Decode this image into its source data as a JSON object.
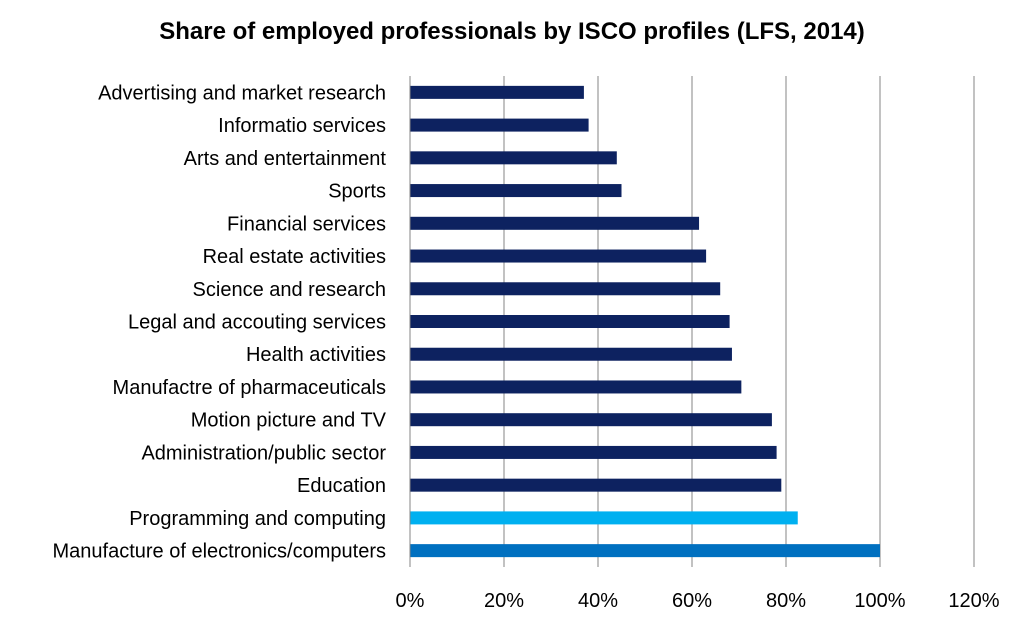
{
  "chart_data": {
    "type": "bar",
    "orientation": "horizontal",
    "title": "Share of employed professionals by ISCO profiles (LFS, 2014)",
    "categories": [
      "Advertising and market research",
      "Informatio services",
      "Arts and entertainment",
      "Sports",
      "Financial services",
      "Real estate activities",
      "Science and research",
      "Legal and accouting services",
      "Health activities",
      "Manufactre of pharmaceuticals",
      "Motion picture and TV",
      "Administration/public sector",
      "Education",
      "Programming and computing",
      "Manufacture of electronics/computers"
    ],
    "values": [
      37,
      38,
      44,
      45,
      61.5,
      63,
      66,
      68,
      68.5,
      70.5,
      77,
      78,
      79,
      82.5,
      100
    ],
    "bar_colors": [
      "#0d2260",
      "#0d2260",
      "#0d2260",
      "#0d2260",
      "#0d2260",
      "#0d2260",
      "#0d2260",
      "#0d2260",
      "#0d2260",
      "#0d2260",
      "#0d2260",
      "#0d2260",
      "#0d2260",
      "#00b0f0",
      "#0070c0"
    ],
    "xlim": [
      0,
      120
    ],
    "x_ticks": [
      "0%",
      "20%",
      "40%",
      "60%",
      "80%",
      "100%",
      "120%"
    ],
    "grid": "vertical",
    "legend": "none"
  }
}
